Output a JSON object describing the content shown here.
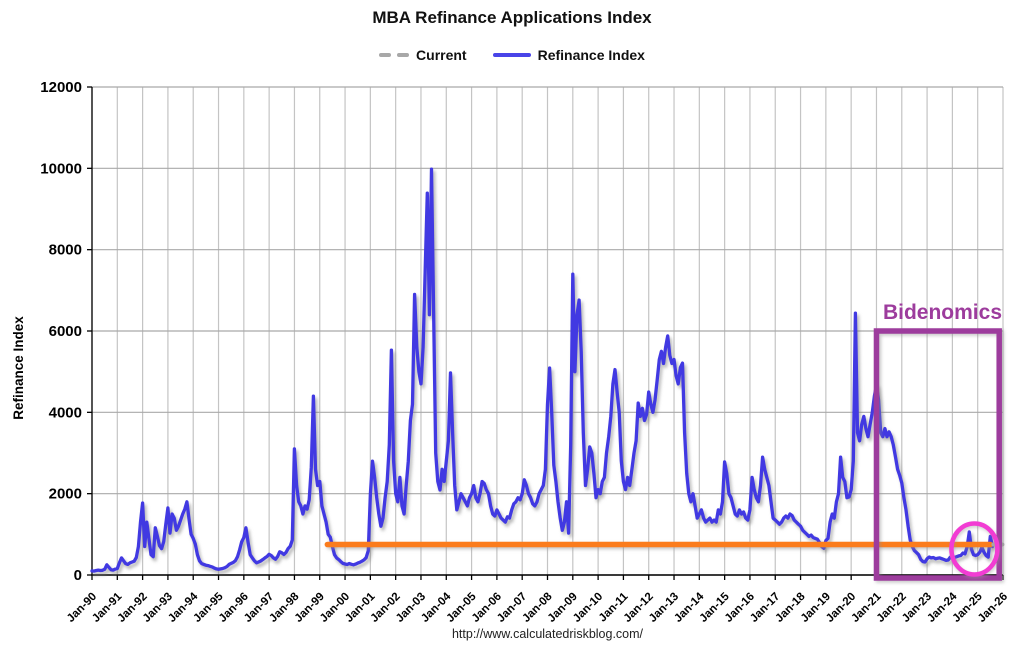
{
  "title": "MBA Refinance Applications Index",
  "legend": {
    "items": [
      {
        "label": "Current",
        "swatch": "gray-dashes",
        "color": "#A8A8A8"
      },
      {
        "label": "Refinance Index",
        "swatch": "blue-line",
        "color": "#4944E8"
      }
    ]
  },
  "footer": {
    "url": "http://www.calculatedriskblog.com/"
  },
  "annotations": {
    "bidenomics": {
      "label": "Bidenomics",
      "color": "#9D3C9D"
    },
    "recent_circle": {
      "color": "#F23CD3"
    }
  },
  "chart_data": {
    "type": "line",
    "title": "MBA Refinance Applications Index",
    "xlabel": "",
    "ylabel": "Refinance Index",
    "ylim": [
      0,
      12000
    ],
    "ytick_step": 2000,
    "ytick_labels": [
      "0",
      "2000",
      "4000",
      "6000",
      "8000",
      "10000",
      "12000"
    ],
    "xlim_years": [
      1990,
      2026
    ],
    "xtick_labels": [
      "Jan-90",
      "Jan-91",
      "Jan-92",
      "Jan-93",
      "Jan-94",
      "Jan-95",
      "Jan-96",
      "Jan-97",
      "Jan-98",
      "Jan-99",
      "Jan-00",
      "Jan-01",
      "Jan-02",
      "Jan-03",
      "Jan-04",
      "Jan-05",
      "Jan-06",
      "Jan-07",
      "Jan-08",
      "Jan-09",
      "Jan-10",
      "Jan-11",
      "Jan-12",
      "Jan-13",
      "Jan-14",
      "Jan-15",
      "Jan-16",
      "Jan-17",
      "Jan-18",
      "Jan-19",
      "Jan-20",
      "Jan-21",
      "Jan-22",
      "Jan-23",
      "Jan-24",
      "Jan-25",
      "Jan-26"
    ],
    "grid": true,
    "legend_position": "top-center",
    "series": [
      {
        "name": "Refinance Index",
        "color": "#4139E2",
        "start_year": 1990,
        "step_months": 1,
        "values_by_year": [
          [
            100,
            95,
            110,
            120,
            110,
            115,
            140,
            250,
            190,
            130,
            120,
            145
          ],
          [
            160,
            300,
            420,
            350,
            280,
            260,
            300,
            320,
            340,
            430,
            700,
            1300
          ],
          [
            1770,
            700,
            1300,
            900,
            500,
            450,
            1160,
            950,
            720,
            650,
            820,
            1250
          ],
          [
            1650,
            1030,
            1500,
            1400,
            1100,
            1200,
            1350,
            1500,
            1620,
            1800,
            1380,
            1000
          ],
          [
            900,
            760,
            500,
            350,
            280,
            260,
            240,
            230,
            215,
            200,
            170,
            150
          ],
          [
            140,
            150,
            160,
            180,
            210,
            260,
            285,
            310,
            355,
            450,
            620,
            820
          ],
          [
            920,
            1160,
            800,
            500,
            420,
            350,
            300,
            320,
            345,
            380,
            420,
            455
          ],
          [
            510,
            480,
            420,
            385,
            455,
            570,
            545,
            505,
            555,
            650,
            705,
            860
          ],
          [
            3100,
            2200,
            1800,
            1700,
            1500,
            1700,
            1620,
            1850,
            2650,
            4400,
            2600,
            2200
          ],
          [
            2300,
            1700,
            1500,
            1300,
            1000,
            930,
            700,
            500,
            420,
            380,
            330,
            285
          ],
          [
            270,
            258,
            282,
            262,
            250,
            268,
            292,
            312,
            340,
            372,
            425,
            600
          ],
          [
            2000,
            2800,
            2400,
            1900,
            1500,
            1200,
            1400,
            1900,
            2300,
            3200,
            5530,
            2800
          ],
          [
            2000,
            1800,
            2400,
            1700,
            1500,
            2200,
            2800,
            3800,
            4200,
            6900,
            5600,
            5000
          ],
          [
            4700,
            5600,
            7500,
            9390,
            6400,
            9980,
            6500,
            3000,
            2300,
            2090,
            2600,
            2300
          ],
          [
            2800,
            3300,
            4970,
            3500,
            2200,
            1600,
            1800,
            2000,
            1900,
            1800,
            1700,
            1900
          ],
          [
            2000,
            2200,
            1900,
            1800,
            2000,
            2300,
            2250,
            2100,
            2000,
            1700,
            1500,
            1450
          ],
          [
            1600,
            1500,
            1400,
            1350,
            1300,
            1430,
            1400,
            1600,
            1750,
            1800,
            1900,
            1850
          ],
          [
            2000,
            2340,
            2200,
            2000,
            1900,
            1750,
            1700,
            1800,
            2000,
            2100,
            2200,
            2600
          ],
          [
            4200,
            5090,
            4000,
            2700,
            2300,
            1800,
            1400,
            1100,
            1300,
            1800,
            1030,
            3200
          ],
          [
            7400,
            5000,
            6400,
            6760,
            5500,
            3500,
            2200,
            2600,
            3150,
            3000,
            2500,
            1900
          ],
          [
            2100,
            2000,
            2300,
            2400,
            3000,
            3400,
            3900,
            4700,
            5050,
            4500,
            4000,
            2800
          ],
          [
            2300,
            2100,
            2400,
            2200,
            2600,
            3000,
            3300,
            4230,
            3900,
            4100,
            3800,
            3950
          ],
          [
            4500,
            4200,
            4000,
            4300,
            4800,
            5300,
            5500,
            5200,
            5600,
            5880,
            5400,
            5200
          ],
          [
            5300,
            4900,
            4700,
            5100,
            5210,
            3500,
            2500,
            2000,
            1800,
            2000,
            1700,
            1400
          ],
          [
            1500,
            1600,
            1400,
            1300,
            1350,
            1400,
            1300,
            1350,
            1300,
            1600,
            1500,
            1800
          ],
          [
            2780,
            2500,
            2000,
            1900,
            1700,
            1500,
            1450,
            1600,
            1500,
            1550,
            1400,
            1350
          ],
          [
            1600,
            2400,
            2100,
            1900,
            1800,
            2200,
            2900,
            2600,
            2400,
            2200,
            1800,
            1400
          ],
          [
            1350,
            1300,
            1250,
            1300,
            1400,
            1450,
            1400,
            1500,
            1460,
            1350,
            1300,
            1250
          ],
          [
            1200,
            1100,
            1050,
            1000,
            950,
            980,
            920,
            900,
            880,
            800,
            700,
            660
          ],
          [
            850,
            900,
            1300,
            1500,
            1400,
            1800,
            2000,
            2900,
            2400,
            2300,
            1900,
            1920
          ],
          [
            2100,
            2800,
            6440,
            3500,
            3300,
            3700,
            3900,
            3600,
            3400,
            3700,
            4000,
            4400
          ],
          [
            4670,
            4300,
            3500,
            3400,
            3600,
            3400,
            3520,
            3400,
            3200,
            2900,
            2600,
            2450
          ],
          [
            2260,
            1900,
            1600,
            1200,
            860,
            700,
            600,
            550,
            500,
            380,
            330,
            320
          ],
          [
            400,
            440,
            420,
            430,
            400,
            410,
            420,
            400,
            380,
            360,
            370,
            440
          ],
          [
            450,
            430,
            450,
            470,
            480,
            540,
            520,
            700,
            1060,
            640,
            500,
            480
          ],
          [
            500,
            560,
            680,
            560,
            480,
            440,
            950,
            700
          ]
        ]
      }
    ],
    "reference_line": {
      "name": "current-level",
      "value": 750,
      "x_start_year": 1999.3,
      "x_end_year": 2025.5,
      "color": "#FB7C1C"
    },
    "current_marker": {
      "name": "Current",
      "value": 750,
      "x_start_year": 2025.62,
      "x_end_year": 2026.08,
      "color": "#A8A8A8",
      "dashed": true
    },
    "bidenomics_box": {
      "x_start_year": 2021.0,
      "x_end_year": 2025.85,
      "y_top_value": 6000,
      "color": "#9D3C9D"
    },
    "recent_circle": {
      "center_year": 2024.87,
      "center_value": 640,
      "color": "#F23CD3"
    }
  }
}
